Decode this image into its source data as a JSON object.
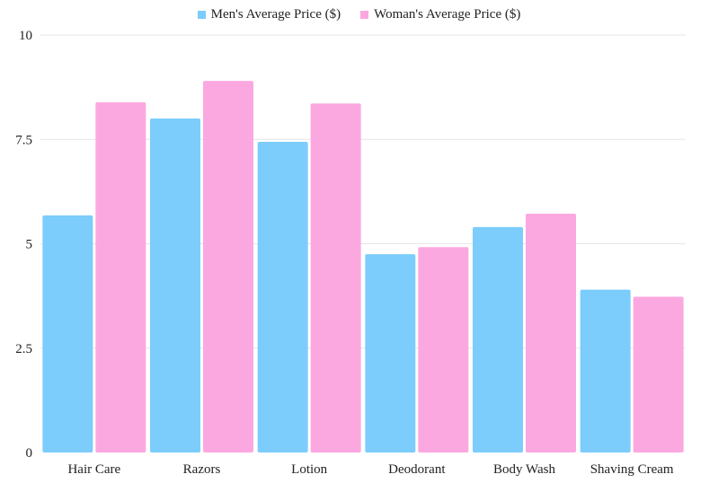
{
  "chart_data": {
    "type": "bar",
    "categories": [
      "Hair Care",
      "Razors",
      "Lotion",
      "Deodorant",
      "Body Wash",
      "Shaving Cream"
    ],
    "series": [
      {
        "name": "Men's Average Price ($)",
        "color": "#7ccdfc",
        "values": [
          5.68,
          8.0,
          7.44,
          4.75,
          5.4,
          3.9
        ]
      },
      {
        "name": "Woman's Average Price ($)",
        "color": "#fca8e0",
        "values": [
          8.39,
          8.9,
          8.36,
          4.92,
          5.72,
          3.73
        ]
      }
    ],
    "title": "",
    "xlabel": "",
    "ylabel": "",
    "ylim": [
      0,
      10
    ],
    "yticks": [
      0,
      2.5,
      5,
      7.5,
      10
    ],
    "ytick_labels": [
      "0",
      "2.5",
      "5",
      "7.5",
      "10"
    ],
    "grid": true,
    "legend_position": "top-center"
  }
}
